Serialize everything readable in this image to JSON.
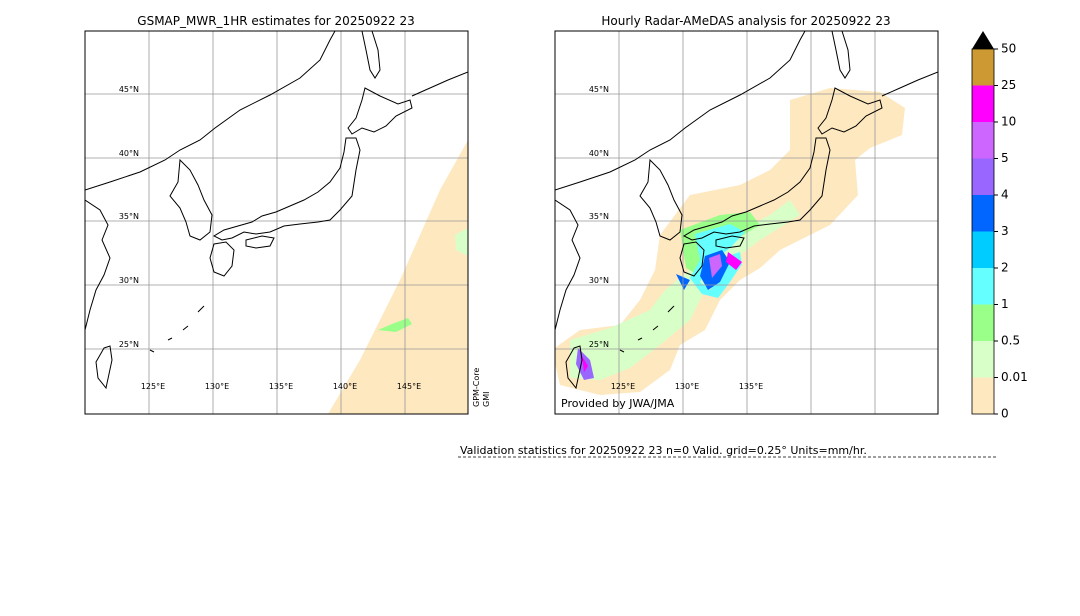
{
  "panels": [
    {
      "title": "GSMAP_MWR_1HR estimates for 20250922 23",
      "lat_labels": [
        "45°N",
        "40°N",
        "35°N",
        "30°N",
        "25°N"
      ],
      "lon_labels": [
        "125°E",
        "130°E",
        "135°E",
        "140°E",
        "145°E"
      ],
      "side_label": [
        "GPM-Core",
        "GMI"
      ]
    },
    {
      "title": "Hourly Radar-AMeDAS analysis for 20250922 23",
      "lat_labels": [
        "45°N",
        "40°N",
        "35°N",
        "30°N",
        "25°N"
      ],
      "lon_labels": [
        "125°E",
        "130°E",
        "135°E"
      ],
      "credit": "Provided by JWA/JMA"
    }
  ],
  "colorbar": {
    "labels": [
      "0",
      "0.01",
      "0.5",
      "1",
      "2",
      "3",
      "4",
      "5",
      "10",
      "25",
      "50"
    ],
    "colors": [
      "#fee8c0",
      "#d8ffc8",
      "#99ff88",
      "#66ffff",
      "#00ccff",
      "#0066ff",
      "#9966ff",
      "#cc66ff",
      "#ff00ff",
      "#cc9933"
    ],
    "extend_color": "#000000"
  },
  "validation": "Validation statistics for 20250922 23  n=0 Valid. grid=0.25° Units=mm/hr."
}
